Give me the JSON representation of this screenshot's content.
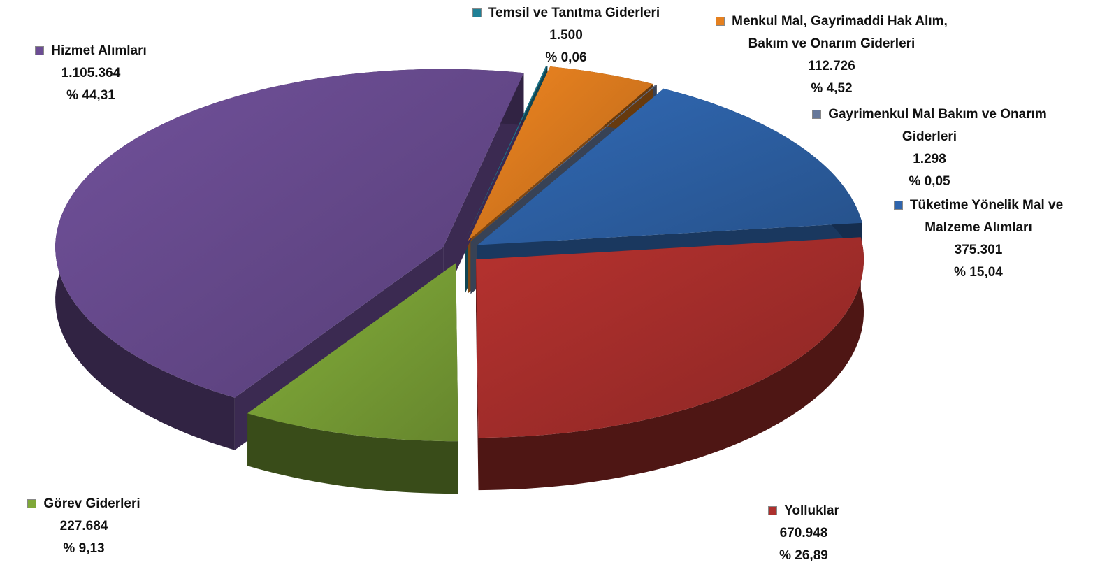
{
  "chart_data": {
    "type": "pie3d",
    "categories": [
      "Temsil ve Tanıtma Giderleri",
      "Menkul Mal, Gayrimaddi Hak Alım, Bakım ve Onarım Giderleri",
      "Gayrimenkul Mal Bakım ve Onarım Giderleri",
      "Tüketime Yönelik Mal ve Malzeme Alımları",
      "Yolluklar",
      "Görev Giderleri",
      "Hizmet Alımları"
    ],
    "values": [
      1500,
      112726,
      1298,
      375301,
      670948,
      227684,
      1105364
    ],
    "value_labels": [
      "1.500",
      "112.726",
      "1.298",
      "375.301",
      "670.948",
      "227.684",
      "1.105.364"
    ],
    "percentages": [
      0.06,
      4.52,
      0.05,
      15.04,
      26.89,
      9.13,
      44.31
    ],
    "percentage_labels": [
      "% 0,06",
      "% 4,52",
      "% 0,05",
      "% 15,04",
      "% 26,89",
      "% 9,13",
      "% 44,31"
    ],
    "colors": [
      "#1f8096",
      "#e5801f",
      "#66789a",
      "#2f65ad",
      "#ad302d",
      "#7fa838",
      "#6c4d94"
    ]
  }
}
